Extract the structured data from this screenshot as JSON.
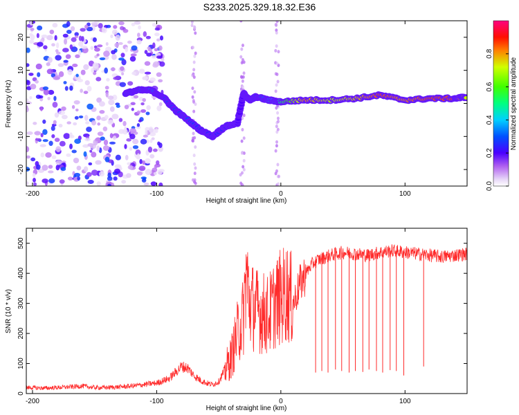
{
  "title": "S233.2025.329.18.32.E36",
  "chart_data": [
    {
      "type": "heatmap",
      "title": "S233.2025.329.18.32.E36",
      "xlabel": "Height of straight line (km)",
      "ylabel": "Frequency (Hz)",
      "xlim": [
        -205,
        150
      ],
      "ylim": [
        -25,
        25
      ],
      "xticks": [
        -200,
        -100,
        0,
        100
      ],
      "yticks": [
        -20,
        -10,
        0,
        10,
        20
      ],
      "colorbar": {
        "label": "Normalized spectral amplitude",
        "range": [
          0,
          1
        ],
        "ticks": [
          0.0,
          0.2,
          0.4,
          0.6,
          0.8
        ],
        "tick_labels": [
          "0.0",
          "0.2",
          "0.4",
          "0.6",
          "0.8"
        ]
      },
      "ridge": {
        "description_points_x_km": [
          -125,
          -115,
          -105,
          -95,
          -85,
          -75,
          -65,
          -55,
          -45,
          -35,
          -30,
          -25,
          -20,
          -10,
          0,
          20,
          40,
          60,
          80,
          100,
          120,
          140,
          150
        ],
        "frequency_hz": [
          3,
          4,
          4,
          2,
          -2,
          -5,
          -8,
          -10,
          -7,
          -6,
          3,
          1,
          2,
          1,
          0.5,
          1,
          1,
          1.5,
          2.5,
          1,
          1.5,
          1.5,
          2
        ],
        "amplitude": [
          0.3,
          0.35,
          0.35,
          0.3,
          0.3,
          0.3,
          0.25,
          0.25,
          0.25,
          0.2,
          0.2,
          0.3,
          0.3,
          0.35,
          0.5,
          0.8,
          0.7,
          0.75,
          0.85,
          0.8,
          0.85,
          0.85,
          0.7
        ]
      }
    },
    {
      "type": "line",
      "xlabel": "Height of straight line (km)",
      "ylabel": "SNR (10 * v/v)",
      "xlim": [
        -205,
        150
      ],
      "ylim": [
        0,
        550
      ],
      "xticks": [
        -200,
        -100,
        0,
        100
      ],
      "yticks": [
        0,
        100,
        200,
        300,
        400,
        500
      ],
      "series": [
        {
          "name": "SNR",
          "color": "#ff2a2a",
          "x": [
            -205,
            -190,
            -180,
            -170,
            -160,
            -150,
            -140,
            -130,
            -120,
            -110,
            -100,
            -90,
            -85,
            -80,
            -75,
            -70,
            -65,
            -60,
            -55,
            -50,
            -45,
            -40,
            -35,
            -30,
            -28,
            -25,
            -20,
            -15,
            -10,
            -5,
            0,
            5,
            10,
            15,
            20,
            25,
            30,
            40,
            50,
            60,
            70,
            80,
            90,
            100,
            110,
            120,
            130,
            140,
            150
          ],
          "y": [
            20,
            18,
            20,
            22,
            25,
            20,
            20,
            22,
            25,
            30,
            35,
            50,
            70,
            90,
            85,
            60,
            45,
            35,
            30,
            40,
            80,
            120,
            200,
            260,
            400,
            300,
            280,
            270,
            260,
            300,
            320,
            340,
            300,
            360,
            400,
            430,
            445,
            460,
            470,
            465,
            460,
            470,
            475,
            470,
            465,
            460,
            455,
            460,
            465
          ]
        }
      ],
      "dropouts": {
        "x": [
          28,
          33,
          38,
          44,
          49,
          55,
          60,
          66,
          71,
          77,
          82,
          88,
          93,
          99,
          115
        ],
        "low": [
          70,
          75,
          70,
          80,
          75,
          70,
          75,
          72,
          80,
          75,
          70,
          78,
          75,
          60,
          90
        ]
      }
    }
  ]
}
